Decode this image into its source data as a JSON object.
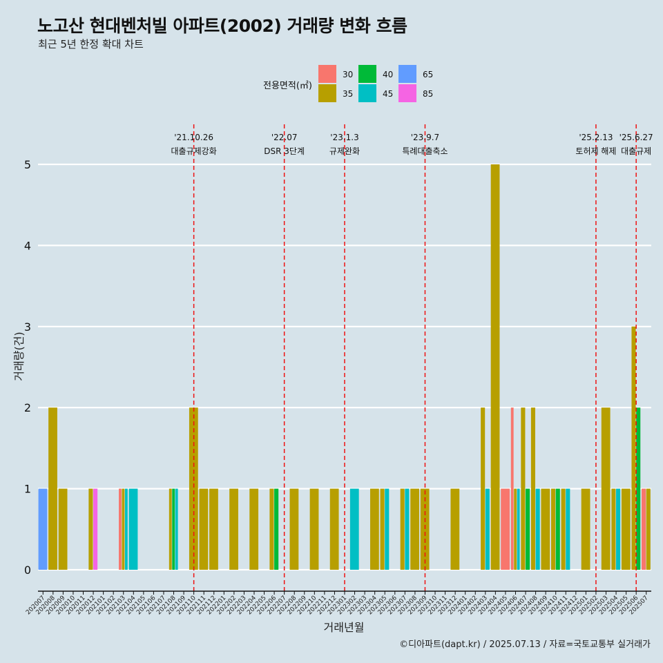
{
  "header": {
    "title": "노고산 현대벤처빌 아파트(2002) 거래량 변화 흐름",
    "subtitle": "최근 5년 한정 확대 차트",
    "caption": "©디아파트(dapt.kr) / 2025.07.13 / 자료=국토교통부 실거래가"
  },
  "chart_data": {
    "type": "bar",
    "xlabel": "거래년월",
    "ylabel": "거래량(건)",
    "ylim": [
      0,
      5
    ],
    "yticks": [
      0,
      1,
      2,
      3,
      4,
      5
    ],
    "grid": true,
    "legend": {
      "title": "전용면적(㎡)",
      "position": "top",
      "items": [
        {
          "name": "30",
          "color": "#f8766d"
        },
        {
          "name": "35",
          "color": "#b79f00"
        },
        {
          "name": "40",
          "color": "#00ba38"
        },
        {
          "name": "45",
          "color": "#00bfc4"
        },
        {
          "name": "65",
          "color": "#619cff"
        },
        {
          "name": "85",
          "color": "#f564e3"
        }
      ]
    },
    "categories": [
      "202007",
      "202008",
      "202009",
      "202010",
      "202011",
      "202012",
      "202101",
      "202102",
      "202103",
      "202104",
      "202105",
      "202106",
      "202107",
      "202108",
      "202109",
      "202110",
      "202111",
      "202112",
      "202201",
      "202202",
      "202203",
      "202204",
      "202205",
      "202206",
      "202207",
      "202208",
      "202209",
      "202210",
      "202211",
      "202212",
      "202301",
      "202302",
      "202303",
      "202304",
      "202305",
      "202306",
      "202307",
      "202308",
      "202309",
      "202310",
      "202311",
      "202312",
      "202401",
      "202402",
      "202403",
      "202404",
      "202405",
      "202406",
      "202407",
      "202408",
      "202409",
      "202410",
      "202411",
      "202412",
      "202501",
      "202502",
      "202503",
      "202504",
      "202505",
      "202506",
      "202507"
    ],
    "bars": [
      {
        "month": "202007",
        "segments": [
          {
            "area": "65",
            "value": 1
          }
        ]
      },
      {
        "month": "202008",
        "segments": [
          {
            "area": "35",
            "value": 2
          }
        ]
      },
      {
        "month": "202009",
        "segments": [
          {
            "area": "35",
            "value": 1
          }
        ]
      },
      {
        "month": "202012",
        "segments": [
          {
            "area": "35",
            "value": 1
          },
          {
            "area": "85",
            "value": 1
          }
        ]
      },
      {
        "month": "202103",
        "segments": [
          {
            "area": "30",
            "value": 1
          },
          {
            "area": "35",
            "value": 1
          },
          {
            "area": "45",
            "value": 1
          }
        ]
      },
      {
        "month": "202104",
        "segments": [
          {
            "area": "45",
            "value": 1
          }
        ]
      },
      {
        "month": "202108",
        "segments": [
          {
            "area": "35",
            "value": 1
          },
          {
            "area": "40",
            "value": 1
          },
          {
            "area": "45",
            "value": 1
          }
        ]
      },
      {
        "month": "202110",
        "segments": [
          {
            "area": "35",
            "value": 2
          }
        ]
      },
      {
        "month": "202111",
        "segments": [
          {
            "area": "35",
            "value": 1
          }
        ]
      },
      {
        "month": "202112",
        "segments": [
          {
            "area": "35",
            "value": 1
          }
        ]
      },
      {
        "month": "202202",
        "segments": [
          {
            "area": "35",
            "value": 1
          }
        ]
      },
      {
        "month": "202204",
        "segments": [
          {
            "area": "35",
            "value": 1
          }
        ]
      },
      {
        "month": "202206",
        "segments": [
          {
            "area": "35",
            "value": 1
          },
          {
            "area": "40",
            "value": 1
          }
        ]
      },
      {
        "month": "202208",
        "segments": [
          {
            "area": "35",
            "value": 1
          }
        ]
      },
      {
        "month": "202210",
        "segments": [
          {
            "area": "35",
            "value": 1
          }
        ]
      },
      {
        "month": "202212",
        "segments": [
          {
            "area": "35",
            "value": 1
          }
        ]
      },
      {
        "month": "202302",
        "segments": [
          {
            "area": "45",
            "value": 1
          }
        ]
      },
      {
        "month": "202304",
        "segments": [
          {
            "area": "35",
            "value": 1
          }
        ]
      },
      {
        "month": "202305",
        "segments": [
          {
            "area": "35",
            "value": 1
          },
          {
            "area": "45",
            "value": 1
          }
        ]
      },
      {
        "month": "202307",
        "segments": [
          {
            "area": "35",
            "value": 1
          },
          {
            "area": "45",
            "value": 1
          }
        ]
      },
      {
        "month": "202308",
        "segments": [
          {
            "area": "35",
            "value": 1
          }
        ]
      },
      {
        "month": "202309",
        "segments": [
          {
            "area": "35",
            "value": 1
          }
        ]
      },
      {
        "month": "202312",
        "segments": [
          {
            "area": "35",
            "value": 1
          }
        ]
      },
      {
        "month": "202403",
        "segments": [
          {
            "area": "35",
            "value": 2
          },
          {
            "area": "45",
            "value": 1
          }
        ]
      },
      {
        "month": "202404",
        "segments": [
          {
            "area": "35",
            "value": 5
          }
        ]
      },
      {
        "month": "202405",
        "segments": [
          {
            "area": "30",
            "value": 1
          }
        ]
      },
      {
        "month": "202406",
        "segments": [
          {
            "area": "30",
            "value": 2
          },
          {
            "area": "35",
            "value": 1
          },
          {
            "area": "45",
            "value": 1
          }
        ]
      },
      {
        "month": "202407",
        "segments": [
          {
            "area": "35",
            "value": 2
          },
          {
            "area": "40",
            "value": 1
          }
        ]
      },
      {
        "month": "202408",
        "segments": [
          {
            "area": "35",
            "value": 2
          },
          {
            "area": "45",
            "value": 1
          }
        ]
      },
      {
        "month": "202409",
        "segments": [
          {
            "area": "35",
            "value": 1
          }
        ]
      },
      {
        "month": "202410",
        "segments": [
          {
            "area": "35",
            "value": 1
          },
          {
            "area": "40",
            "value": 1
          }
        ]
      },
      {
        "month": "202411",
        "segments": [
          {
            "area": "35",
            "value": 1
          },
          {
            "area": "45",
            "value": 1
          }
        ]
      },
      {
        "month": "202501",
        "segments": [
          {
            "area": "35",
            "value": 1
          }
        ]
      },
      {
        "month": "202503",
        "segments": [
          {
            "area": "35",
            "value": 2
          }
        ]
      },
      {
        "month": "202504",
        "segments": [
          {
            "area": "35",
            "value": 1
          },
          {
            "area": "45",
            "value": 1
          }
        ]
      },
      {
        "month": "202505",
        "segments": [
          {
            "area": "35",
            "value": 1
          }
        ]
      },
      {
        "month": "202506",
        "segments": [
          {
            "area": "35",
            "value": 3
          },
          {
            "area": "40",
            "value": 2
          }
        ]
      },
      {
        "month": "202507",
        "segments": [
          {
            "area": "30",
            "value": 1
          },
          {
            "area": "35",
            "value": 1
          }
        ]
      }
    ],
    "annotations": [
      {
        "x": "202110",
        "date": "'21.10.26",
        "label": "대출규제강화"
      },
      {
        "x": "202207",
        "date": "'22.07",
        "label": "DSR 3단계"
      },
      {
        "x": "202301",
        "date": "'23.1.3",
        "label": "규제완화"
      },
      {
        "x": "202309",
        "date": "'23.9.7",
        "label": "특례대출축소"
      },
      {
        "x": "202502",
        "date": "'25.2.13",
        "label": "토허제 해제"
      },
      {
        "x": "202506",
        "date": "'25.6.27",
        "label": "대출규제"
      }
    ]
  }
}
